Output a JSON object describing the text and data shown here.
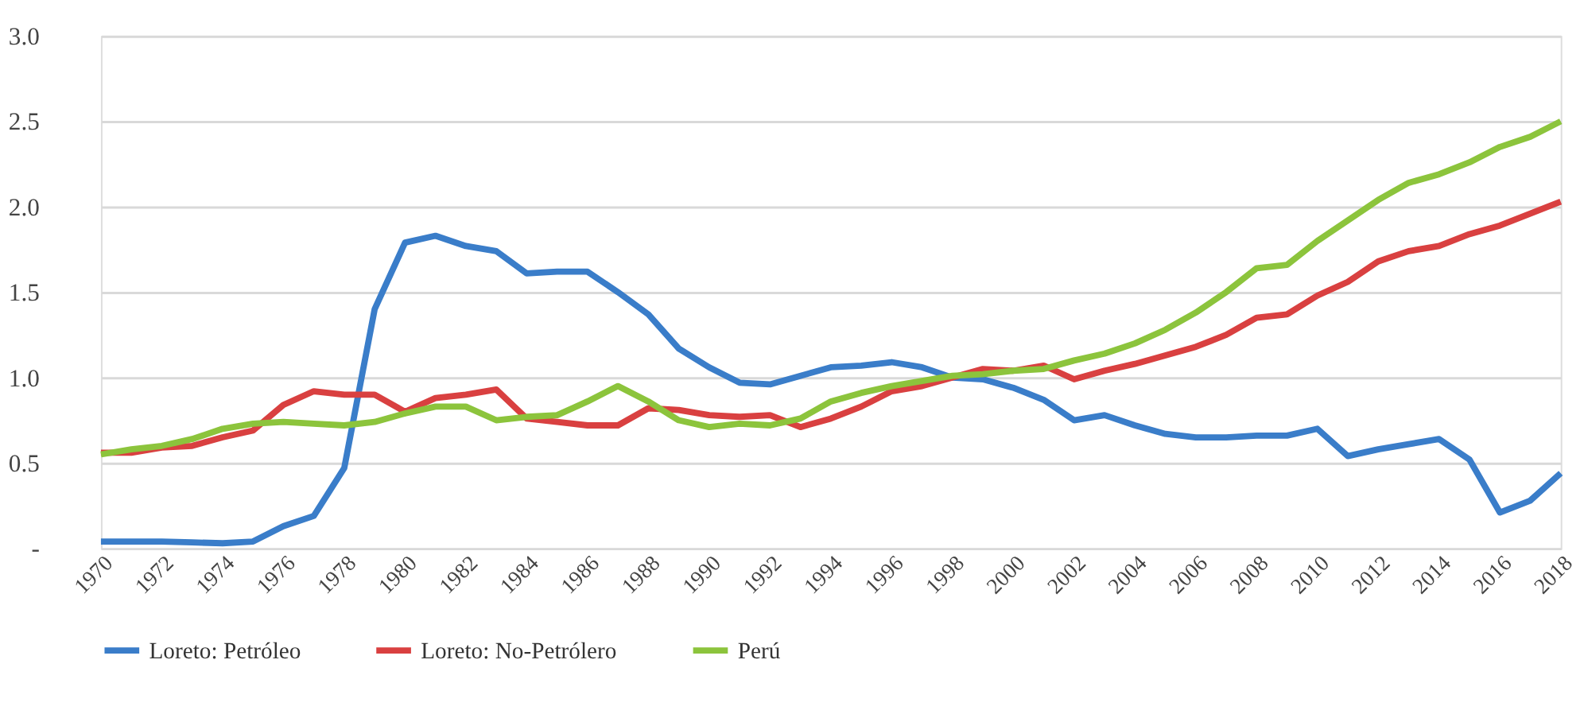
{
  "chart_data": {
    "type": "line",
    "x": [
      1970,
      1971,
      1972,
      1973,
      1974,
      1975,
      1976,
      1977,
      1978,
      1979,
      1980,
      1981,
      1982,
      1983,
      1984,
      1985,
      1986,
      1987,
      1988,
      1989,
      1990,
      1991,
      1992,
      1993,
      1994,
      1995,
      1996,
      1997,
      1998,
      1999,
      2000,
      2001,
      2002,
      2003,
      2004,
      2005,
      2006,
      2007,
      2008,
      2009,
      2010,
      2011,
      2012,
      2013,
      2014,
      2015,
      2016,
      2017,
      2018
    ],
    "series": [
      {
        "name": "Loreto: Petróleo",
        "color": "#3a7dc9",
        "values": [
          0.04,
          0.04,
          0.04,
          0.035,
          0.03,
          0.04,
          0.13,
          0.19,
          0.47,
          1.4,
          1.79,
          1.83,
          1.77,
          1.74,
          1.61,
          1.62,
          1.62,
          1.5,
          1.37,
          1.17,
          1.06,
          0.97,
          0.96,
          1.01,
          1.06,
          1.07,
          1.09,
          1.06,
          1.0,
          0.99,
          0.94,
          0.87,
          0.75,
          0.78,
          0.72,
          0.67,
          0.65,
          0.65,
          0.66,
          0.66,
          0.7,
          0.54,
          0.58,
          0.61,
          0.64,
          0.52,
          0.21,
          0.28,
          0.44
        ]
      },
      {
        "name": "Loreto: No-Petrólero",
        "color": "#d94040",
        "values": [
          0.56,
          0.56,
          0.59,
          0.6,
          0.65,
          0.69,
          0.84,
          0.92,
          0.9,
          0.9,
          0.8,
          0.88,
          0.9,
          0.93,
          0.76,
          0.74,
          0.72,
          0.72,
          0.82,
          0.81,
          0.78,
          0.77,
          0.78,
          0.71,
          0.76,
          0.83,
          0.92,
          0.95,
          1.0,
          1.05,
          1.04,
          1.07,
          0.99,
          1.04,
          1.08,
          1.13,
          1.18,
          1.25,
          1.35,
          1.37,
          1.48,
          1.56,
          1.68,
          1.74,
          1.77,
          1.84,
          1.89,
          1.96,
          2.03
        ]
      },
      {
        "name": "Perú",
        "color": "#8cc43c",
        "values": [
          0.55,
          0.58,
          0.6,
          0.64,
          0.7,
          0.73,
          0.74,
          0.73,
          0.72,
          0.74,
          0.79,
          0.83,
          0.83,
          0.75,
          0.77,
          0.78,
          0.86,
          0.95,
          0.86,
          0.75,
          0.71,
          0.73,
          0.72,
          0.76,
          0.86,
          0.91,
          0.95,
          0.98,
          1.01,
          1.02,
          1.04,
          1.05,
          1.1,
          1.14,
          1.2,
          1.28,
          1.38,
          1.5,
          1.64,
          1.66,
          1.8,
          1.92,
          2.04,
          2.14,
          2.19,
          2.26,
          2.35,
          2.41,
          2.5
        ]
      }
    ],
    "xlim": [
      1970,
      2018
    ],
    "xticks": [
      1970,
      1972,
      1974,
      1976,
      1978,
      1980,
      1982,
      1984,
      1986,
      1988,
      1990,
      1992,
      1994,
      1996,
      1998,
      2000,
      2002,
      2004,
      2006,
      2008,
      2010,
      2012,
      2014,
      2016,
      2018
    ],
    "ylim": [
      0,
      3.0
    ],
    "yticks": [
      {
        "value": 0,
        "label": "-"
      },
      {
        "value": 0.5,
        "label": "0.5"
      },
      {
        "value": 1.0,
        "label": "1.0"
      },
      {
        "value": 1.5,
        "label": "1.5"
      },
      {
        "value": 2.0,
        "label": "2.0"
      },
      {
        "value": 2.5,
        "label": "2.5"
      },
      {
        "value": 3.0,
        "label": "3.0"
      }
    ],
    "grid": "y",
    "legend": "bottom",
    "marker": "none",
    "line_style": "solid"
  }
}
